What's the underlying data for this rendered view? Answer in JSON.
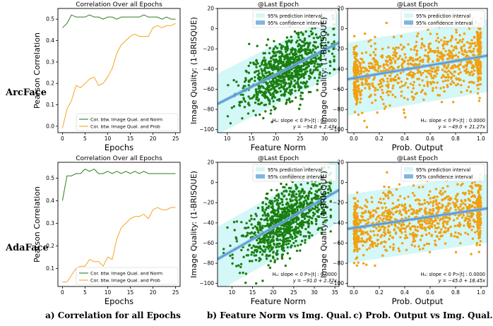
{
  "figure": {
    "row_labels": [
      "ArcFace",
      "AdaFace"
    ],
    "captions": [
      "a) Correlation for all Epochs",
      "b) Feature Norm vs Img. Qual.",
      "c) Prob. Output vs Img. Qual."
    ],
    "colors": {
      "norm_line": "#2e7d1e",
      "prob_line": "#f5a623",
      "feature_points": "#1a7f10",
      "prob_points": "#f0a010",
      "pred_band": "#d4f7f7",
      "conf_band": "#7fb7e0",
      "fit_line": "#4a8fd4"
    }
  },
  "chart_data": [
    {
      "id": "arc_corr",
      "type": "line",
      "title": "Correlation Over all Epochs",
      "xlabel": "Epochs",
      "ylabel": "Pearson Correlation",
      "xlim": [
        -1,
        26
      ],
      "ylim": [
        -0.03,
        0.55
      ],
      "xticks": [
        0,
        5,
        10,
        15,
        20,
        25
      ],
      "yticks": [
        0.0,
        0.1,
        0.2,
        0.3,
        0.4,
        0.5
      ],
      "ytick_labels": [
        "0.0",
        "0.1",
        "0.2",
        "0.3",
        "0.4",
        "0.5"
      ],
      "legend": [
        "Cor. btw. Image Qual. and Norm",
        "Cor. btw. Image Qual. and Prob"
      ],
      "legend_position": "lower-right",
      "x": [
        0,
        1,
        2,
        3,
        4,
        5,
        6,
        7,
        8,
        9,
        10,
        11,
        12,
        13,
        14,
        15,
        16,
        17,
        18,
        19,
        20,
        21,
        22,
        23,
        24,
        25
      ],
      "series": [
        {
          "name": "Cor. btw. Image Qual. and Norm",
          "values": [
            0.46,
            0.48,
            0.52,
            0.51,
            0.51,
            0.51,
            0.52,
            0.51,
            0.51,
            0.5,
            0.51,
            0.51,
            0.5,
            0.51,
            0.51,
            0.51,
            0.51,
            0.51,
            0.52,
            0.51,
            0.51,
            0.51,
            0.5,
            0.51,
            0.5,
            0.5
          ]
        },
        {
          "name": "Cor. btw. Image Qual. and Prob",
          "values": [
            -0.01,
            0.08,
            0.12,
            0.19,
            0.18,
            0.2,
            0.22,
            0.23,
            0.19,
            0.2,
            0.23,
            0.27,
            0.34,
            0.38,
            0.4,
            0.42,
            0.43,
            0.42,
            0.42,
            0.42,
            0.46,
            0.47,
            0.46,
            0.47,
            0.47,
            0.48
          ]
        }
      ]
    },
    {
      "id": "arc_feat",
      "type": "scatter",
      "title": "@Last Epoch",
      "xlabel": "Feature Norm",
      "ylabel": "Image Quality: (1-BRISQUE)",
      "xlim": [
        8,
        33
      ],
      "ylim": [
        -103,
        20
      ],
      "xticks": [
        10,
        15,
        20,
        25,
        30
      ],
      "yticks": [
        20,
        0,
        -20,
        -40,
        -60,
        -80,
        -100
      ],
      "ytick_labels": [
        "20",
        "0",
        "−20",
        "−40",
        "−60",
        "−80",
        "−100"
      ],
      "legend": [
        "95% prediction interval",
        "95% confidence interval"
      ],
      "legend_position": "top-right",
      "annotation_line1": "Hₐ: slope < 0   P>|t| : 0.0000",
      "annotation_line2": "y = −94.0 + 2.43x",
      "fit": {
        "intercept": -94.0,
        "slope": 2.43,
        "pred_halfwidth": 30,
        "conf_halfwidth": 1.8
      },
      "scatter": {
        "n": 950,
        "x_mean": 22,
        "x_sd": 4.2,
        "x_min": 9,
        "x_max": 32,
        "noise_sd": 15,
        "y_min": -100,
        "y_max": 15,
        "seed": 11
      }
    },
    {
      "id": "arc_prob",
      "type": "scatter",
      "title": "@Last Epoch",
      "xlabel": "Prob. Output",
      "ylabel": "Image Quality: (1-BRISQUE)",
      "xlim": [
        -0.05,
        1.05
      ],
      "ylim": [
        -103,
        20
      ],
      "xticks": [
        0.0,
        0.2,
        0.4,
        0.6,
        0.8,
        1.0
      ],
      "yticks": [
        20,
        0,
        -20,
        -40,
        -60,
        -80,
        -100
      ],
      "xtick_labels": [
        "0.0",
        "0.2",
        "0.4",
        "0.6",
        "0.8",
        "1.0"
      ],
      "ytick_labels": [
        "20",
        "0",
        "−20",
        "−40",
        "−60",
        "−80",
        "−100"
      ],
      "legend": [
        "95% prediction interval",
        "95% confidence interval"
      ],
      "legend_position": "top-right",
      "annotation_line1": "Hₐ: slope < 0   P>|t| : 0.0000",
      "annotation_line2": "y = −49.0 + 21.27x",
      "fit": {
        "intercept": -49.0,
        "slope": 21.27,
        "pred_halfwidth": 36,
        "conf_halfwidth": 1.6
      },
      "scatter": {
        "n": 950,
        "x_dist": "uniform-edges",
        "x_min": 0.0,
        "x_max": 1.0,
        "noise_sd": 16,
        "y_min": -98,
        "y_max": 10,
        "seed": 23
      }
    },
    {
      "id": "ada_corr",
      "type": "line",
      "title": "Correlation Over all Epochs",
      "xlabel": "Epochs",
      "ylabel": "Pearson Correlation",
      "xlim": [
        -1,
        26
      ],
      "ylim": [
        0.02,
        0.57
      ],
      "xticks": [
        0,
        5,
        10,
        15,
        20,
        25
      ],
      "yticks": [
        0.1,
        0.2,
        0.3,
        0.4,
        0.5
      ],
      "ytick_labels": [
        "0.1",
        "0.2",
        "0.3",
        "0.4",
        "0.5"
      ],
      "legend": [
        "Cor. btw. Image Qual. and Norm",
        "Cor. btw. Image Qual. and Prob"
      ],
      "legend_position": "lower-right",
      "x": [
        0,
        1,
        2,
        3,
        4,
        5,
        6,
        7,
        8,
        9,
        10,
        11,
        12,
        13,
        14,
        15,
        16,
        17,
        18,
        19,
        20,
        21,
        22,
        23,
        24,
        25
      ],
      "series": [
        {
          "name": "Cor. btw. Image Qual. and Norm",
          "values": [
            0.4,
            0.51,
            0.51,
            0.52,
            0.52,
            0.54,
            0.53,
            0.54,
            0.52,
            0.52,
            0.53,
            0.52,
            0.53,
            0.52,
            0.53,
            0.52,
            0.53,
            0.52,
            0.53,
            0.52,
            0.52,
            0.52,
            0.52,
            0.52,
            0.52,
            0.52
          ]
        },
        {
          "name": "Cor. btw. Image Qual. and Prob",
          "values": [
            0.04,
            0.04,
            0.07,
            0.1,
            0.11,
            0.11,
            0.14,
            0.13,
            0.13,
            0.11,
            0.15,
            0.14,
            0.23,
            0.28,
            0.3,
            0.32,
            0.33,
            0.33,
            0.34,
            0.32,
            0.36,
            0.37,
            0.36,
            0.36,
            0.37,
            0.37
          ]
        }
      ]
    },
    {
      "id": "ada_feat",
      "type": "scatter",
      "title": "@Last Epoch",
      "xlabel": "Feature Norm",
      "ylabel": "Image Quality: (1-BRISQUE)",
      "xlim": [
        6.5,
        36
      ],
      "ylim": [
        -103,
        20
      ],
      "xticks": [
        10,
        15,
        20,
        25,
        30,
        35
      ],
      "yticks": [
        20,
        0,
        -20,
        -40,
        -60,
        -80,
        -100
      ],
      "ytick_labels": [
        "20",
        "0",
        "−20",
        "−40",
        "−60",
        "−80",
        "−100"
      ],
      "legend": [
        "95% prediction interval",
        "95% confidence interval"
      ],
      "legend_position": "top-right",
      "annotation_line1": "Hₐ: slope < 0   P>|t| : 0.0000",
      "annotation_line2": "y = −91.0 + 2.32x",
      "fit": {
        "intercept": -91.0,
        "slope": 2.32,
        "pred_halfwidth": 32,
        "conf_halfwidth": 1.8
      },
      "scatter": {
        "n": 950,
        "x_mean": 23,
        "x_sd": 5.0,
        "x_min": 8,
        "x_max": 34,
        "noise_sd": 16,
        "y_min": -100,
        "y_max": 15,
        "seed": 37
      }
    },
    {
      "id": "ada_prob",
      "type": "scatter",
      "title": "@Last Epoch",
      "xlabel": "Prob. Output",
      "ylabel": "Image Quality: (1-BRISQUE)",
      "xlim": [
        -0.05,
        1.05
      ],
      "ylim": [
        -103,
        20
      ],
      "xticks": [
        0.0,
        0.2,
        0.4,
        0.6,
        0.8,
        1.0
      ],
      "yticks": [
        20,
        0,
        -20,
        -40,
        -60,
        -80,
        -100
      ],
      "xtick_labels": [
        "0.0",
        "0.2",
        "0.4",
        "0.6",
        "0.8",
        "1.0"
      ],
      "ytick_labels": [
        "20",
        "0",
        "−20",
        "−40",
        "−60",
        "−80",
        "−100"
      ],
      "legend": [
        "95% prediction interval",
        "95% confidence interval"
      ],
      "legend_position": "top-right",
      "annotation_line1": "Hₐ: slope < 0   P>|t| : 0.0000",
      "annotation_line2": "y = −45.0 + 18.45x",
      "fit": {
        "intercept": -45.0,
        "slope": 18.45,
        "pred_halfwidth": 34,
        "conf_halfwidth": 1.6
      },
      "scatter": {
        "n": 950,
        "x_dist": "uniform-edges",
        "x_min": 0.0,
        "x_max": 1.0,
        "noise_sd": 15,
        "y_min": -98,
        "y_max": 10,
        "seed": 41
      }
    }
  ]
}
